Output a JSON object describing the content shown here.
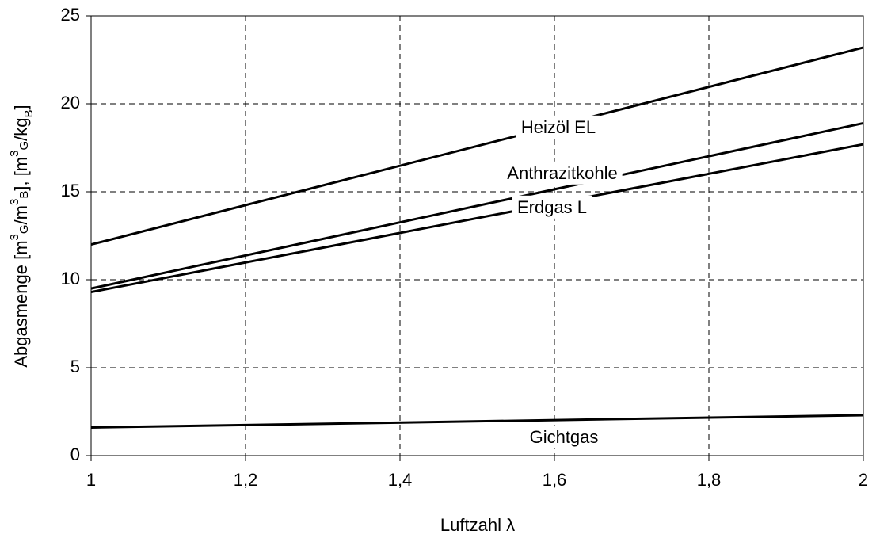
{
  "chart_data": {
    "type": "line",
    "xlabel": "Luftzahl λ",
    "ylabel_parts": [
      "Abgasmenge [m",
      "3",
      "G",
      "/m",
      "3",
      "B",
      "], [m",
      "3",
      "G",
      "/kg",
      "B",
      "]"
    ],
    "x": [
      1,
      2
    ],
    "series": [
      {
        "name": "Heizöl EL",
        "color": "#000000",
        "values": [
          12.0,
          23.2
        ]
      },
      {
        "name": "Anthrazitkohle",
        "color": "#000000",
        "values": [
          9.5,
          18.9
        ]
      },
      {
        "name": "Erdgas L",
        "color": "#000000",
        "values": [
          9.3,
          17.7
        ]
      },
      {
        "name": "Gichtgas",
        "color": "#000000",
        "values": [
          1.6,
          2.3
        ]
      }
    ],
    "xlim": [
      1,
      2
    ],
    "xticks": [
      1,
      {
        "value": 1.2,
        "label": "1,2"
      },
      {
        "value": 1.4,
        "label": "1,4"
      },
      {
        "value": 1.6,
        "label": "1,6"
      },
      {
        "value": 1.8,
        "label": "1,8"
      },
      2
    ],
    "ylim": [
      0,
      25
    ],
    "yticks": [
      0,
      5,
      10,
      15,
      20,
      25
    ],
    "grid": true
  }
}
